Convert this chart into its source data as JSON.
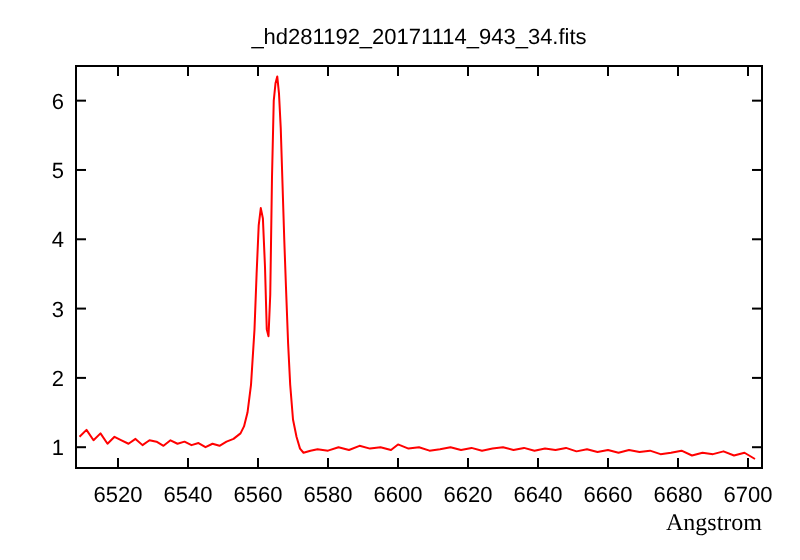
{
  "chart_data": {
    "type": "line",
    "title": "_hd281192_20171114_943_34.fits",
    "xlabel": "Angstrom",
    "xlim": [
      6508,
      6704
    ],
    "ylim": [
      0.7,
      6.5
    ],
    "xticks": [
      6520,
      6540,
      6560,
      6580,
      6600,
      6620,
      6640,
      6660,
      6680,
      6700
    ],
    "yticks": [
      1,
      2,
      3,
      4,
      5,
      6
    ],
    "line_style": "solid",
    "series": [
      {
        "color": "#ff0000",
        "x": [
          6509,
          6511,
          6513,
          6515,
          6517,
          6519,
          6521,
          6523,
          6525,
          6527,
          6529,
          6531,
          6533,
          6535,
          6537,
          6539,
          6541,
          6543,
          6545,
          6547,
          6549,
          6551,
          6553,
          6555,
          6556,
          6557,
          6558,
          6559,
          6559.6,
          6560.2,
          6560.8,
          6561.4,
          6562,
          6562.5,
          6563,
          6563.5,
          6564,
          6564.5,
          6565,
          6565.5,
          6566,
          6566.5,
          6567,
          6567.5,
          6568,
          6568.6,
          6569.2,
          6570,
          6571,
          6572,
          6573,
          6575,
          6577,
          6580,
          6583,
          6586,
          6589,
          6592,
          6595,
          6598,
          6600,
          6603,
          6606,
          6609,
          6612,
          6615,
          6618,
          6621,
          6624,
          6627,
          6630,
          6633,
          6636,
          6639,
          6642,
          6645,
          6648,
          6651,
          6654,
          6657,
          6660,
          6663,
          6666,
          6669,
          6672,
          6675,
          6678,
          6681,
          6684,
          6687,
          6690,
          6693,
          6696,
          6699,
          6702
        ],
        "values": [
          1.15,
          1.25,
          1.1,
          1.2,
          1.05,
          1.15,
          1.1,
          1.05,
          1.12,
          1.03,
          1.1,
          1.08,
          1.02,
          1.1,
          1.05,
          1.08,
          1.03,
          1.06,
          1.0,
          1.05,
          1.02,
          1.08,
          1.12,
          1.2,
          1.3,
          1.5,
          1.9,
          2.7,
          3.5,
          4.2,
          4.45,
          4.3,
          3.6,
          2.7,
          2.6,
          3.2,
          4.9,
          6.0,
          6.25,
          6.35,
          6.1,
          5.6,
          4.8,
          4.0,
          3.3,
          2.5,
          1.9,
          1.4,
          1.15,
          0.98,
          0.92,
          0.95,
          0.97,
          0.95,
          1.0,
          0.96,
          1.02,
          0.98,
          1.0,
          0.96,
          1.04,
          0.98,
          1.0,
          0.95,
          0.97,
          1.0,
          0.96,
          0.99,
          0.95,
          0.98,
          1.0,
          0.96,
          0.99,
          0.95,
          0.98,
          0.96,
          0.99,
          0.94,
          0.97,
          0.93,
          0.96,
          0.92,
          0.96,
          0.93,
          0.95,
          0.9,
          0.92,
          0.95,
          0.88,
          0.92,
          0.9,
          0.94,
          0.88,
          0.92,
          0.83
        ]
      }
    ]
  }
}
